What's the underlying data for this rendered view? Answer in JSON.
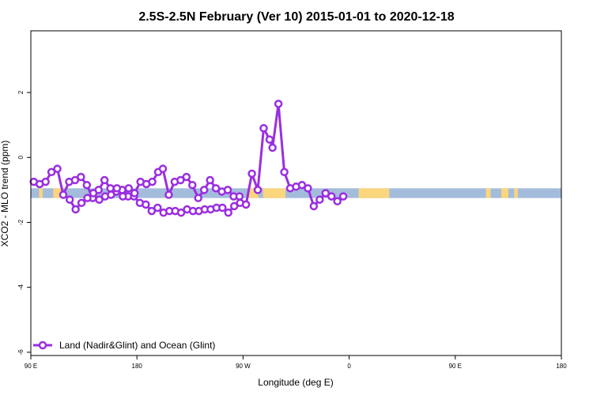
{
  "chart_data": {
    "type": "line",
    "title": "2.5S-2.5N February (Ver 10)   2015-01-01 to 2020-12-18",
    "xlabel": "Longitude (deg E)",
    "ylabel": "XCO2 - MLO trend (ppm)",
    "xlim": [
      90,
      540
    ],
    "ylim": [
      -6.1,
      3.9
    ],
    "x_ticks": [
      {
        "value": 90,
        "label": "90 E"
      },
      {
        "value": 180,
        "label": "180"
      },
      {
        "value": 270,
        "label": "90 W"
      },
      {
        "value": 360,
        "label": "0"
      },
      {
        "value": 450,
        "label": "90 E"
      },
      {
        "value": 540,
        "label": "180"
      }
    ],
    "y_ticks": [
      {
        "value": 2,
        "label": "2"
      },
      {
        "value": 0,
        "label": "0"
      },
      {
        "value": -2,
        "label": "-2"
      },
      {
        "value": -4,
        "label": "-4"
      },
      {
        "value": -6,
        "label": "-6"
      }
    ],
    "grid": false,
    "legend_position": "bottom-left",
    "surface_band": {
      "y_range": [
        -1.25,
        -0.95
      ],
      "ocean_color": "#a4bcdc",
      "land_color": "#fcd67c",
      "land_segments": [
        [
          97,
          100
        ],
        [
          109,
          116
        ],
        [
          275,
          283
        ],
        [
          287,
          306
        ],
        [
          368,
          394
        ],
        [
          476,
          480
        ],
        [
          489,
          495
        ],
        [
          500,
          503
        ]
      ]
    },
    "series": [
      {
        "name": "Land (Nadir&Glint) and Ocean (Glint)",
        "color": "#9a2ee0",
        "segments": [
          [
            [
              92.5,
              -0.75
            ],
            [
              97.5,
              -0.82
            ],
            [
              102.5,
              -0.75
            ],
            [
              107.5,
              -0.45
            ],
            [
              112.5,
              -0.35
            ],
            [
              117.5,
              -1.15
            ],
            [
              122.5,
              -0.75
            ],
            [
              127.5,
              -0.7
            ],
            [
              132.5,
              -0.6
            ],
            [
              137.5,
              -0.85
            ],
            [
              142.5,
              -1.25
            ],
            [
              147.5,
              -1.0
            ],
            [
              152.5,
              -0.7
            ],
            [
              157.5,
              -0.95
            ],
            [
              162.5,
              -1.05
            ],
            [
              167.5,
              -1.0
            ],
            [
              172.5,
              -1.2
            ],
            [
              177.5,
              -1.2
            ],
            [
              182.5,
              -1.4
            ],
            [
              187.5,
              -1.45
            ],
            [
              192.5,
              -1.65
            ],
            [
              197.5,
              -1.55
            ],
            [
              202.5,
              -1.7
            ],
            [
              207.5,
              -1.65
            ],
            [
              212.5,
              -1.65
            ],
            [
              217.5,
              -1.7
            ],
            [
              222.5,
              -1.6
            ],
            [
              227.5,
              -1.65
            ],
            [
              232.5,
              -1.65
            ],
            [
              237.5,
              -1.6
            ],
            [
              242.5,
              -1.6
            ],
            [
              247.5,
              -1.55
            ],
            [
              252.5,
              -1.55
            ],
            [
              257.5,
              -1.7
            ],
            [
              262.5,
              -1.5
            ],
            [
              267.5,
              -1.4
            ],
            [
              272.5,
              -1.45
            ],
            [
              277.5,
              -0.5
            ],
            [
              282.5,
              -1.0
            ],
            [
              287.5,
              0.9
            ],
            [
              292.5,
              0.55
            ],
            [
              295.0,
              0.3
            ],
            [
              300.0,
              1.65
            ],
            [
              305.0,
              -0.45
            ],
            [
              310.0,
              -0.95
            ],
            [
              315.0,
              -0.9
            ],
            [
              320.0,
              -0.85
            ],
            [
              325.0,
              -0.95
            ],
            [
              330.0,
              -1.5
            ],
            [
              335.0,
              -1.3
            ],
            [
              340.0,
              -1.1
            ],
            [
              345.0,
              -1.2
            ],
            [
              350.0,
              -1.35
            ],
            [
              355.0,
              -1.2
            ]
          ],
          [
            [
              123.0,
              -1.3
            ],
            [
              128.0,
              -1.6
            ],
            [
              133.0,
              -1.4
            ],
            [
              138.0,
              -1.25
            ],
            [
              143.0,
              -1.1
            ],
            [
              148.0,
              -1.3
            ],
            [
              153.0,
              -1.2
            ],
            [
              158.0,
              -1.15
            ],
            [
              163.0,
              -0.95
            ],
            [
              168.0,
              -1.2
            ],
            [
              173.0,
              -0.95
            ],
            [
              178.0,
              -1.1
            ],
            [
              183.0,
              -0.75
            ],
            [
              188.0,
              -0.82
            ],
            [
              193.0,
              -0.75
            ],
            [
              198.0,
              -0.45
            ],
            [
              202.0,
              -0.35
            ],
            [
              207.0,
              -1.15
            ],
            [
              212.0,
              -0.75
            ],
            [
              217.0,
              -0.7
            ],
            [
              222.0,
              -0.6
            ],
            [
              227.0,
              -0.85
            ],
            [
              232.0,
              -1.25
            ],
            [
              237.0,
              -1.0
            ],
            [
              242.0,
              -0.7
            ],
            [
              247.0,
              -0.95
            ],
            [
              252.0,
              -1.05
            ],
            [
              257.0,
              -1.0
            ],
            [
              262.0,
              -1.2
            ],
            [
              267.0,
              -1.2
            ]
          ]
        ]
      }
    ]
  }
}
